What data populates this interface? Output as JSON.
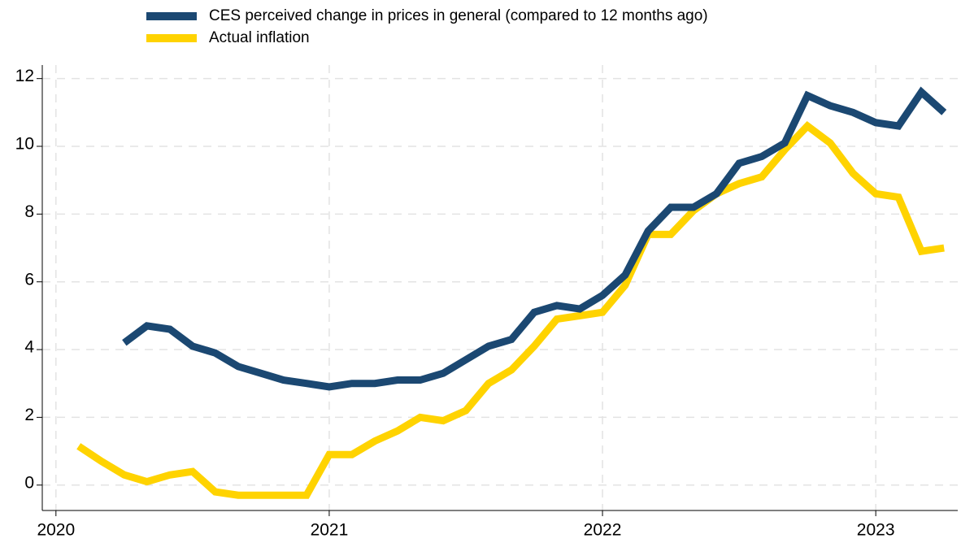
{
  "chart_data": {
    "type": "line",
    "x": [
      2020.083,
      2020.167,
      2020.25,
      2020.333,
      2020.417,
      2020.5,
      2020.583,
      2020.667,
      2020.75,
      2020.833,
      2020.917,
      2021,
      2021.083,
      2021.167,
      2021.25,
      2021.333,
      2021.417,
      2021.5,
      2021.583,
      2021.667,
      2021.75,
      2021.833,
      2021.917,
      2022,
      2022.083,
      2022.167,
      2022.25,
      2022.333,
      2022.417,
      2022.5,
      2022.583,
      2022.667,
      2022.75,
      2022.833,
      2022.917,
      2023,
      2023.083,
      2023.167,
      2023.25
    ],
    "series": [
      {
        "name": "CES perceived change in prices in general (compared to 12 months ago)",
        "color": "#1b4872",
        "values": [
          null,
          null,
          4.2,
          4.7,
          4.6,
          4.1,
          3.9,
          3.5,
          3.3,
          3.1,
          3.0,
          2.9,
          3.0,
          3.0,
          3.1,
          3.1,
          3.3,
          3.7,
          4.1,
          4.3,
          5.1,
          5.3,
          5.2,
          5.6,
          6.2,
          7.5,
          8.2,
          8.2,
          8.6,
          9.5,
          9.7,
          10.1,
          11.5,
          11.2,
          11.0,
          10.7,
          10.6,
          11.6,
          11.0
        ]
      },
      {
        "name": "Actual inflation",
        "color": "#ffd300",
        "values": [
          1.15,
          0.7,
          0.3,
          0.1,
          0.3,
          0.4,
          -0.2,
          -0.3,
          -0.3,
          -0.3,
          -0.3,
          0.9,
          0.9,
          1.3,
          1.6,
          2.0,
          1.9,
          2.2,
          3.0,
          3.4,
          4.1,
          4.9,
          5.0,
          5.1,
          5.9,
          7.4,
          7.4,
          8.1,
          8.6,
          8.9,
          9.1,
          9.9,
          10.6,
          10.1,
          9.2,
          8.6,
          8.5,
          6.9,
          7.0
        ]
      }
    ],
    "xlim": [
      2019.95,
      2023.3
    ],
    "xticks": [
      2020,
      2021,
      2022,
      2023
    ],
    "ylim": [
      -0.75,
      12.4
    ],
    "yticks": [
      0,
      2,
      4,
      6,
      8,
      10,
      12
    ],
    "grid": true,
    "legend": "top"
  }
}
